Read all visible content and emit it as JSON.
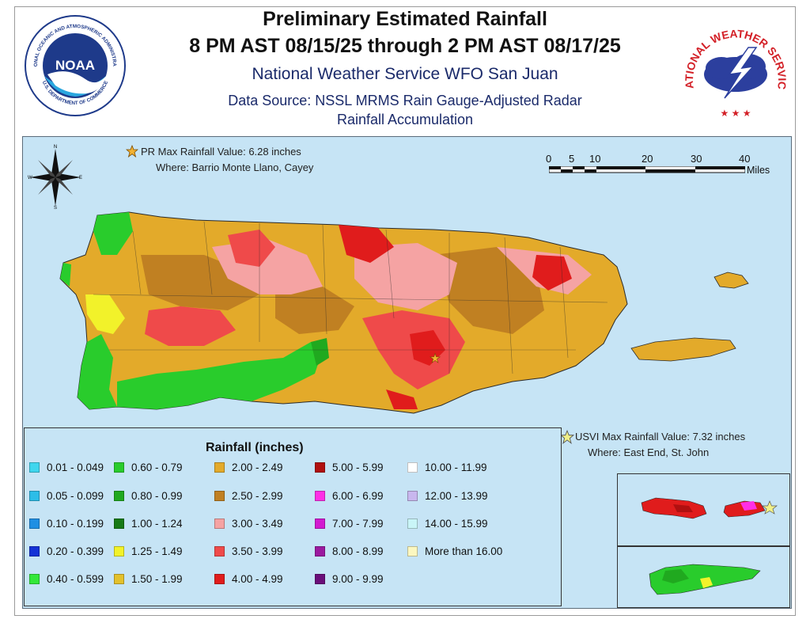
{
  "header": {
    "title_line1": "Preliminary Estimated Rainfall",
    "title_line2": "8 PM AST 08/15/25 through 2 PM AST 08/17/25",
    "office": "National Weather Service WFO San Juan",
    "source_line1": "Data Source: NSSL MRMS Rain Gauge-Adjusted Radar",
    "source_line2": "Rainfall Accumulation"
  },
  "logos": {
    "noaa_ring_text": "NATIONAL OCEANIC AND ATMOSPHERIC ADMINISTRATION",
    "noaa_bottom_text": "U.S. DEPARTMENT OF COMMERCE",
    "noaa_center": "NOAA",
    "nws_ring_text": "NATIONAL WEATHER SERVICE"
  },
  "compass": {
    "n": "N",
    "s": "S",
    "e": "E",
    "w": "W"
  },
  "annotations": {
    "pr_max": "PR Max Rainfall Value: 6.28 inches",
    "pr_where": "Where: Barrio Monte Llano, Cayey",
    "usvi_max": "USVI Max Rainfall Value: 7.32 inches",
    "usvi_where": "Where: East End, St. John"
  },
  "scale_bar": {
    "ticks": [
      "0",
      "5",
      "10",
      "20",
      "30",
      "40"
    ],
    "unit": "Miles"
  },
  "legend": {
    "title": "Rainfall (inches)",
    "items": [
      {
        "label": "0.01 - 0.049",
        "color": "#3fd6ee"
      },
      {
        "label": "0.05 - 0.099",
        "color": "#2cbde8"
      },
      {
        "label": "0.10 - 0.199",
        "color": "#1f8fe3"
      },
      {
        "label": "0.20 - 0.399",
        "color": "#1432d6"
      },
      {
        "label": "0.40 - 0.599",
        "color": "#33e83a"
      },
      {
        "label": "0.60 - 0.79",
        "color": "#29cc2c"
      },
      {
        "label": "0.80 - 0.99",
        "color": "#20a91f"
      },
      {
        "label": "1.00 - 1.24",
        "color": "#177a16"
      },
      {
        "label": "1.25 - 1.49",
        "color": "#f2f22a"
      },
      {
        "label": "1.50 - 1.99",
        "color": "#e3c12c"
      },
      {
        "label": "2.00 - 2.49",
        "color": "#e3aa2a"
      },
      {
        "label": "2.50 - 2.99",
        "color": "#c08022"
      },
      {
        "label": "3.00 - 3.49",
        "color": "#f5a3a3"
      },
      {
        "label": "3.50 - 3.99",
        "color": "#ef4a4a"
      },
      {
        "label": "4.00 - 4.99",
        "color": "#e01c1c"
      },
      {
        "label": "5.00 - 5.99",
        "color": "#b01010"
      },
      {
        "label": "6.00 - 6.99",
        "color": "#ff2fe6"
      },
      {
        "label": "7.00 - 7.99",
        "color": "#d21ad0"
      },
      {
        "label": "8.00 - 8.99",
        "color": "#9b1aa0"
      },
      {
        "label": "9.00 - 9.99",
        "color": "#6a0e7a"
      },
      {
        "label": "10.00 - 11.99",
        "color": "#ffffff"
      },
      {
        "label": "12.00 - 13.99",
        "color": "#c8b7ee"
      },
      {
        "label": "14.00 - 15.99",
        "color": "#c9f5f7"
      },
      {
        "label": "More than 16.00",
        "color": "#fbf7c0"
      }
    ]
  },
  "colors": {
    "ocean": "#c6e4f5",
    "title_blue": "#1a2a6a",
    "noaa_blue": "#1e3a8a",
    "nws_red": "#d32027"
  }
}
